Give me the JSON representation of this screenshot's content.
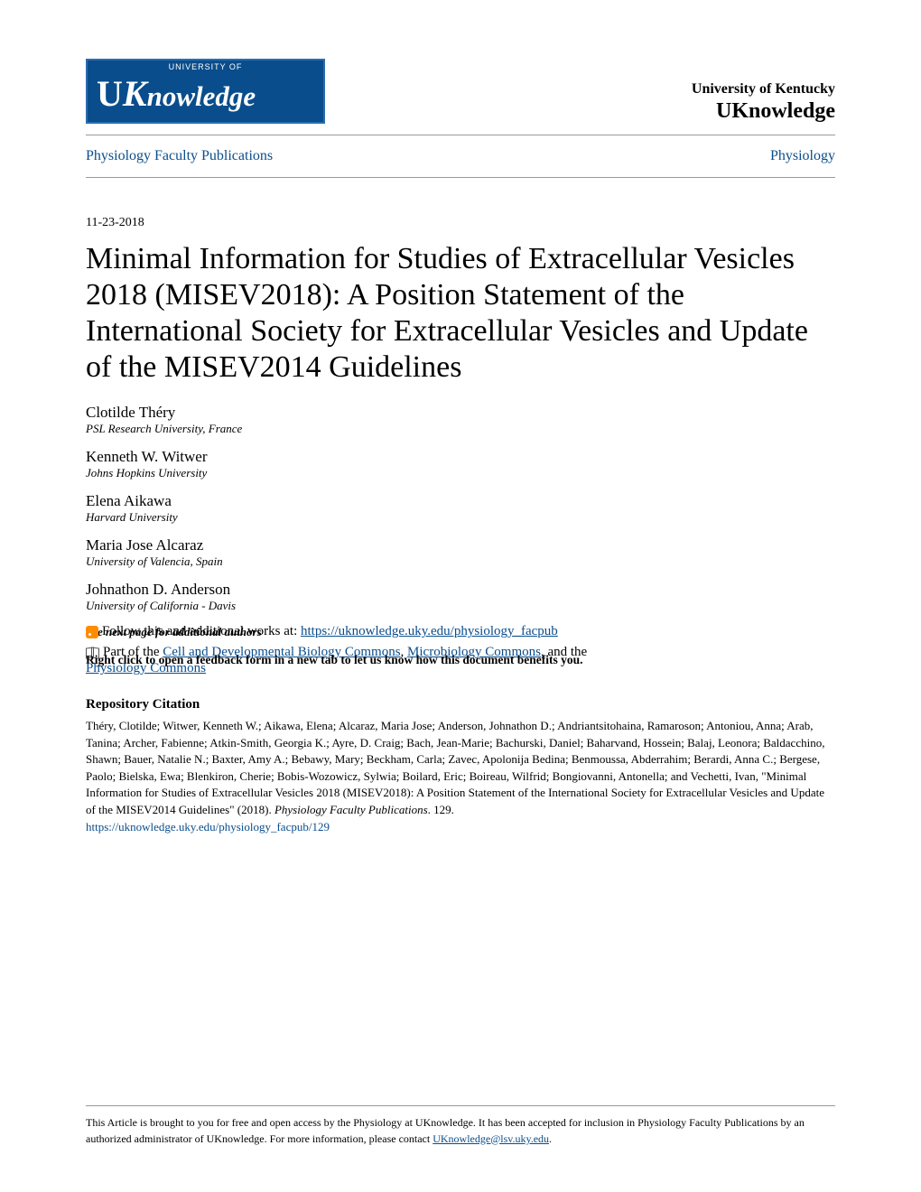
{
  "header": {
    "logo_top": "UNIVERSITY OF",
    "logo_brand_u": "U",
    "logo_brand_k": "K",
    "logo_brand_rest": "nowledge",
    "university": "University of Kentucky",
    "site": "UKnowledge"
  },
  "nav": {
    "left": "Physiology Faculty Publications",
    "right": "Physiology"
  },
  "date": "11-23-2018",
  "title": "Minimal Information for Studies of Extracellular Vesicles 2018 (MISEV2018): A Position Statement of the International Society for Extracellular Vesicles and Update of the MISEV2014 Guidelines",
  "authors": [
    {
      "name": "Clotilde Théry",
      "affil": "PSL Research University, France"
    },
    {
      "name": "Kenneth W. Witwer",
      "affil": "Johns Hopkins University"
    },
    {
      "name": "Elena Aikawa",
      "affil": "Harvard University"
    },
    {
      "name": "Maria Jose Alcaraz",
      "affil": "University of Valencia, Spain"
    },
    {
      "name": "Johnathon D. Anderson",
      "affil": "University of California - Davis"
    }
  ],
  "see_next": "See next page for additional authors",
  "follow_prefix": "Follow this and additional works at: ",
  "follow_url": "https://uknowledge.uky.edu/physiology_facpub",
  "partof_prefix": "Part of the ",
  "commons1": "Cell and Developmental Biology Commons",
  "commons_sep1": ", ",
  "commons2": "Microbiology Commons",
  "commons_sep2": ", and the",
  "rightclick": "Right click to open a feedback form in a new tab to let us know how this document benefits you.",
  "commons3": "Physiology Commons",
  "citation": {
    "heading": "Repository Citation",
    "text": "Théry, Clotilde; Witwer, Kenneth W.; Aikawa, Elena; Alcaraz, Maria Jose; Anderson, Johnathon D.; Andriantsitohaina, Ramaroson; Antoniou, Anna; Arab, Tanina; Archer, Fabienne; Atkin-Smith, Georgia K.; Ayre, D. Craig; Bach, Jean-Marie; Bachurski, Daniel; Baharvand, Hossein; Balaj, Leonora; Baldacchino, Shawn; Bauer, Natalie N.; Baxter, Amy A.; Bebawy, Mary; Beckham, Carla; Zavec, Apolonija Bedina; Benmoussa, Abderrahim; Berardi, Anna C.; Bergese, Paolo; Bielska, Ewa; Blenkiron, Cherie; Bobis-Wozowicz, Sylwia; Boilard, Eric; Boireau, Wilfrid; Bongiovanni, Antonella; and Vechetti, Ivan, \"Minimal Information for Studies of Extracellular Vesicles 2018 (MISEV2018): A Position Statement of the International Society for Extracellular Vesicles and Update of the MISEV2014 Guidelines\" (2018). ",
    "text_ital": "Physiology Faculty Publications",
    "text_after": ". 129.",
    "url": "https://uknowledge.uky.edu/physiology_facpub/129"
  },
  "footer": {
    "text_before": "This Article is brought to you for free and open access by the Physiology at UKnowledge. It has been accepted for inclusion in Physiology Faculty Publications by an authorized administrator of UKnowledge. For more information, please contact ",
    "email": "UKnowledge@lsv.uky.edu",
    "text_after": "."
  },
  "colors": {
    "link": "#0a4d8c",
    "logo_bg": "#0a4d8c",
    "rule": "#999999",
    "text": "#000000",
    "bg": "#ffffff"
  }
}
